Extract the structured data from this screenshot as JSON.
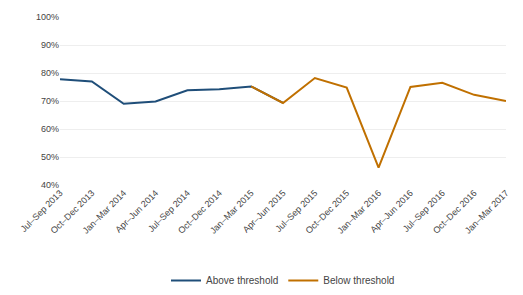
{
  "chart_data": {
    "type": "line",
    "categories": [
      "Jul–Sep 2013",
      "Oct–Dec 2013",
      "Jan–Mar 2014",
      "Apr–Jun 2014",
      "Jul–Sep 2014",
      "Oct–Dec 2014",
      "Jan–Mar 2015",
      "Apr–Jun 2015",
      "Jul–Sep 2015",
      "Oct–Dec 2015",
      "Jan–Mar 2016",
      "Apr–Jun 2016",
      "Jul–Sep 2016",
      "Oct–Dec 2016",
      "Jan–Mar 2017"
    ],
    "series": [
      {
        "name": "Above threshold",
        "color": "#1F4E79",
        "values": [
          0.778,
          0.77,
          0.69,
          0.698,
          0.738,
          0.742,
          0.752,
          0.693,
          null,
          null,
          null,
          null,
          null,
          null,
          null
        ]
      },
      {
        "name": "Below threshold",
        "color": "#C07000",
        "values": [
          null,
          null,
          null,
          null,
          null,
          null,
          0.752,
          0.693,
          0.782,
          0.748,
          0.462,
          0.75,
          0.765,
          0.722,
          0.7
        ]
      }
    ],
    "ylim": [
      0.4,
      1.0
    ],
    "yticks": [
      {
        "value": 0.4,
        "label": "40%"
      },
      {
        "value": 0.5,
        "label": "50%"
      },
      {
        "value": 0.6,
        "label": "60%"
      },
      {
        "value": 0.7,
        "label": "70%"
      },
      {
        "value": 0.8,
        "label": "80%"
      },
      {
        "value": 0.9,
        "label": "90%"
      },
      {
        "value": 1.0,
        "label": "100%"
      }
    ],
    "grid": true,
    "legend": "bottom"
  }
}
